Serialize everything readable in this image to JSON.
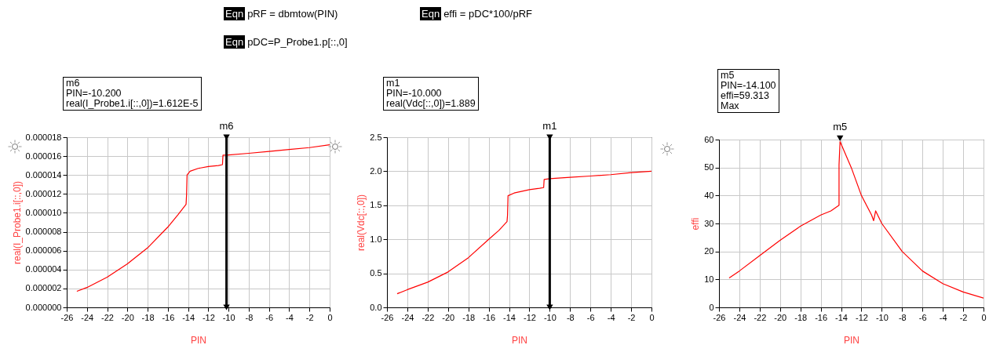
{
  "chart_data": [
    {
      "type": "other",
      "annotations": [
        "Eqn pRF = dbmtow(PIN)",
        "Eqn effi = pDC*100/pRF",
        "Eqn pDC=P_Probe1.p[::,0]"
      ]
    },
    {
      "type": "line",
      "xlabel": "PIN",
      "ylabel": "real(I_Probe1.i[::,0])",
      "xlim": [
        -26,
        0
      ],
      "xticks": [
        -26,
        -24,
        -22,
        -20,
        -18,
        -16,
        -14,
        -12,
        -10,
        -8,
        -6,
        -4,
        -2,
        0
      ],
      "ylim": [
        0,
        1.8e-05
      ],
      "yticks": [
        {
          "value": 0,
          "label": "0.000000"
        },
        {
          "value": 2e-06,
          "label": "0.000002"
        },
        {
          "value": 4e-06,
          "label": "0.000004"
        },
        {
          "value": 6e-06,
          "label": "0.000006"
        },
        {
          "value": 8e-06,
          "label": "0.000008"
        },
        {
          "value": 1e-05,
          "label": "0.000010"
        },
        {
          "value": 1.2e-05,
          "label": "0.000012"
        },
        {
          "value": 1.4e-05,
          "label": "0.000014"
        },
        {
          "value": 1.6e-05,
          "label": "0.000016"
        },
        {
          "value": 1.8e-05,
          "label": "0.000018"
        }
      ],
      "grid": true,
      "marker": "none",
      "line_style": "solid",
      "series": [
        {
          "color": "#ff0000",
          "x": [
            -25,
            -24,
            -22,
            -20,
            -18,
            -16,
            -15,
            -14.2,
            -14.15,
            -14.1,
            -13.8,
            -13,
            -12,
            -11,
            -10.6,
            -10.55,
            -10.2,
            -8,
            -6,
            -4,
            -2,
            0
          ],
          "values": [
            1.7e-06,
            2.1e-06,
            3.2e-06,
            4.6e-06,
            6.3e-06,
            8.5e-06,
            9.8e-06,
            1.09e-05,
            1.19e-05,
            1.4e-05,
            1.44e-05,
            1.47e-05,
            1.49e-05,
            1.5e-05,
            1.51e-05,
            1.61e-05,
            1.61e-05,
            1.63e-05,
            1.65e-05,
            1.67e-05,
            1.69e-05,
            1.72e-05
          ]
        }
      ],
      "ref_lines": [
        {
          "axis": "x",
          "value": -10.2,
          "label": "m6",
          "color": "#000000"
        }
      ],
      "annotations": [
        "m6\nPIN=-10.200\nreal(I_Probe1.i[::,0])=1.612E-5"
      ]
    },
    {
      "type": "line",
      "xlabel": "PIN",
      "ylabel": "real(Vdc[::,0])",
      "xlim": [
        -26,
        0
      ],
      "xticks": [
        -26,
        -24,
        -22,
        -20,
        -18,
        -16,
        -14,
        -12,
        -10,
        -8,
        -6,
        -4,
        -2,
        0
      ],
      "ylim": [
        0,
        2.5
      ],
      "yticks": [
        {
          "value": 0,
          "label": "0.0"
        },
        {
          "value": 0.5,
          "label": "0.5"
        },
        {
          "value": 1,
          "label": "1.0"
        },
        {
          "value": 1.5,
          "label": "1.5"
        },
        {
          "value": 2,
          "label": "2.0"
        },
        {
          "value": 2.5,
          "label": "2.5"
        }
      ],
      "grid": true,
      "marker": "none",
      "line_style": "solid",
      "series": [
        {
          "color": "#ff0000",
          "x": [
            -25,
            -24,
            -22,
            -20,
            -18,
            -16,
            -15,
            -14.2,
            -14.15,
            -14.1,
            -13.5,
            -12,
            -11,
            -10.6,
            -10.55,
            -10,
            -8,
            -6,
            -4,
            -2,
            0
          ],
          "values": [
            0.2,
            0.26,
            0.37,
            0.52,
            0.73,
            1.0,
            1.13,
            1.26,
            1.35,
            1.64,
            1.68,
            1.73,
            1.75,
            1.76,
            1.88,
            1.89,
            1.91,
            1.93,
            1.95,
            1.98,
            2.0
          ]
        }
      ],
      "ref_lines": [
        {
          "axis": "x",
          "value": -10,
          "label": "m1",
          "color": "#000000"
        }
      ],
      "annotations": [
        "m1\nPIN=-10.000\nreal(Vdc[::,0])=1.889"
      ]
    },
    {
      "type": "line",
      "xlabel": "PIN",
      "ylabel": "effi",
      "xlim": [
        -26,
        0
      ],
      "xticks": [
        -26,
        -24,
        -22,
        -20,
        -18,
        -16,
        -14,
        -12,
        -10,
        -8,
        -6,
        -4,
        -2,
        0
      ],
      "ylim": [
        0,
        60
      ],
      "yticks": [
        0,
        10,
        20,
        30,
        40,
        50,
        60
      ],
      "grid": true,
      "marker": "none",
      "line_style": "solid",
      "series": [
        {
          "color": "#ff0000",
          "x": [
            -25,
            -24,
            -22,
            -20,
            -18,
            -16,
            -15,
            -14.2,
            -14.2,
            -14.1,
            -13,
            -12,
            -11,
            -10.8,
            -10.6,
            -10,
            -8,
            -6,
            -4,
            -2,
            0
          ],
          "values": [
            10.5,
            13,
            18.5,
            24,
            29,
            33,
            34.5,
            36.5,
            51,
            59.3,
            50,
            40,
            33,
            31,
            34.5,
            30,
            20,
            13,
            8.5,
            5.5,
            3.3
          ]
        }
      ],
      "annotations": [
        {
          "text": "m5",
          "x": -14.1,
          "y": 59.3
        },
        "m5\nPIN=-14.100\neffi=59.313\nMax"
      ]
    }
  ]
}
